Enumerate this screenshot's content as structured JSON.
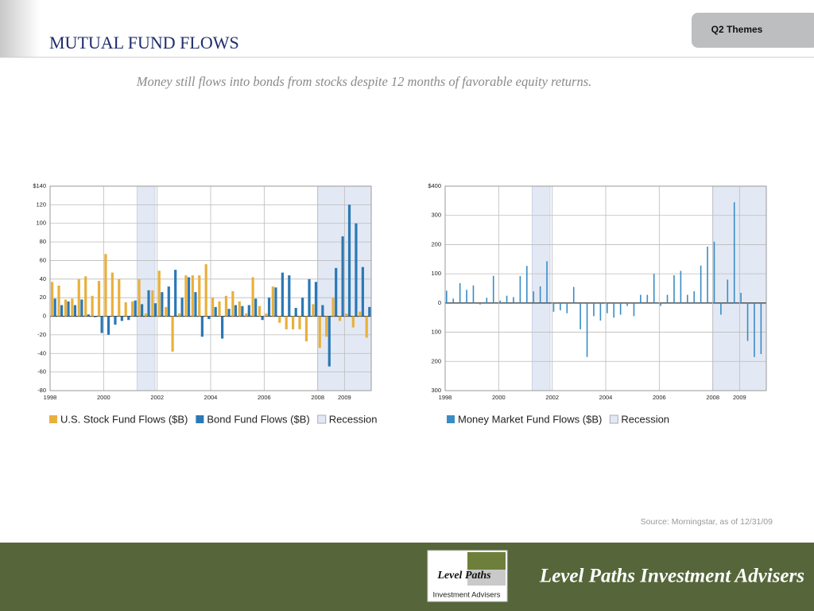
{
  "header": {
    "title": "MUTUAL FUND FLOWS",
    "tab": "Q2 Themes",
    "subtitle": "Money still flows into bonds from stocks despite 12 months of favorable equity returns."
  },
  "source": "Source: Morningstar, as of 12/31/09",
  "footer": {
    "brand": "Level Paths Investment Advisers",
    "logo_top": "Level Paths",
    "logo_bottom": "Investment Advisers"
  },
  "chart_data": [
    {
      "type": "bar",
      "x": [
        1998,
        1998.25,
        1998.5,
        1998.75,
        1999,
        1999.25,
        1999.5,
        1999.75,
        2000,
        2000.25,
        2000.5,
        2000.75,
        2001,
        2001.25,
        2001.5,
        2001.75,
        2002,
        2002.25,
        2002.5,
        2002.75,
        2003,
        2003.25,
        2003.5,
        2003.75,
        2004,
        2004.25,
        2004.5,
        2004.75,
        2005,
        2005.25,
        2005.5,
        2005.75,
        2006,
        2006.25,
        2006.5,
        2006.75,
        2007,
        2007.25,
        2007.5,
        2007.75,
        2008,
        2008.25,
        2008.5,
        2008.75,
        2009,
        2009.25,
        2009.5,
        2009.75
      ],
      "xlim": [
        1998,
        2010
      ],
      "xticks": [
        1998,
        2000,
        2002,
        2004,
        2006,
        2008,
        2009
      ],
      "ylim": [
        -80,
        140
      ],
      "yticks": [
        {
          "value": 140,
          "label": "$140"
        },
        120,
        100,
        80,
        60,
        40,
        20,
        0,
        -20,
        -40,
        -60,
        -80
      ],
      "grid": true,
      "recession": {
        "name": "Recession",
        "color": "#e3e9f4",
        "ranges": [
          [
            2001.25,
            2001.92
          ],
          [
            2008,
            2010
          ]
        ]
      },
      "series": [
        {
          "name": "U.S. Stock Fund Flows ($B)",
          "color": "#e8b03c",
          "values": [
            37,
            33,
            18,
            19,
            40,
            43,
            22,
            38,
            67,
            47,
            40,
            15,
            16,
            40,
            3,
            28,
            49,
            10,
            -38,
            3,
            44,
            44,
            44,
            56,
            20,
            16,
            22,
            27,
            16,
            3,
            42,
            11,
            3,
            32,
            -7,
            -14,
            -14,
            -14,
            -27,
            13,
            -34,
            -22,
            20,
            -5,
            3,
            -12,
            5,
            -23
          ]
        },
        {
          "name": "Bond Fund Flows ($B)",
          "color": "#2a78b6",
          "values": [
            19,
            12,
            16,
            12,
            18,
            2,
            -1,
            -18,
            -20,
            -9,
            -5,
            -4,
            17,
            13,
            28,
            14,
            26,
            32,
            50,
            20,
            42,
            26,
            -22,
            -3,
            10,
            -24,
            8,
            12,
            11,
            12,
            19,
            -4,
            20,
            31,
            47,
            44,
            9,
            20,
            40,
            37,
            12,
            -54,
            52,
            86,
            120,
            100,
            53,
            10
          ]
        }
      ]
    },
    {
      "type": "bar",
      "x": [
        1998,
        1998.25,
        1998.5,
        1998.75,
        1999,
        1999.25,
        1999.5,
        1999.75,
        2000,
        2000.25,
        2000.5,
        2000.75,
        2001,
        2001.25,
        2001.5,
        2001.75,
        2002,
        2002.25,
        2002.5,
        2002.75,
        2003,
        2003.25,
        2003.5,
        2003.75,
        2004,
        2004.25,
        2004.5,
        2004.75,
        2005,
        2005.25,
        2005.5,
        2005.75,
        2006,
        2006.25,
        2006.5,
        2006.75,
        2007,
        2007.25,
        2007.5,
        2007.75,
        2008,
        2008.25,
        2008.5,
        2008.75,
        2009,
        2009.25,
        2009.5,
        2009.75
      ],
      "xlim": [
        1998,
        2010
      ],
      "xticks": [
        1998,
        2000,
        2002,
        2004,
        2006,
        2008,
        2009
      ],
      "ylim": [
        -300,
        400
      ],
      "yticks": [
        {
          "value": 400,
          "label": "$400"
        },
        300,
        200,
        100,
        0,
        {
          "value": -100,
          "label": "100"
        },
        {
          "value": -200,
          "label": "200"
        },
        {
          "value": -300,
          "label": "300"
        }
      ],
      "grid": true,
      "recession": {
        "name": "Recession",
        "color": "#e3e9f4",
        "ranges": [
          [
            2001.25,
            2001.92
          ],
          [
            2008,
            2010
          ]
        ]
      },
      "series": [
        {
          "name": "Money Market Fund Flows ($B)",
          "color": "#3a8cc4",
          "values": [
            42,
            15,
            68,
            45,
            60,
            -5,
            18,
            93,
            8,
            25,
            20,
            92,
            127,
            40,
            57,
            143,
            -30,
            -25,
            -35,
            55,
            -90,
            -185,
            -45,
            -60,
            -35,
            -50,
            -40,
            -10,
            -45,
            28,
            28,
            100,
            -10,
            28,
            95,
            110,
            28,
            40,
            128,
            193,
            210,
            -40,
            80,
            345,
            35,
            -130,
            -185,
            -175
          ]
        }
      ]
    }
  ]
}
